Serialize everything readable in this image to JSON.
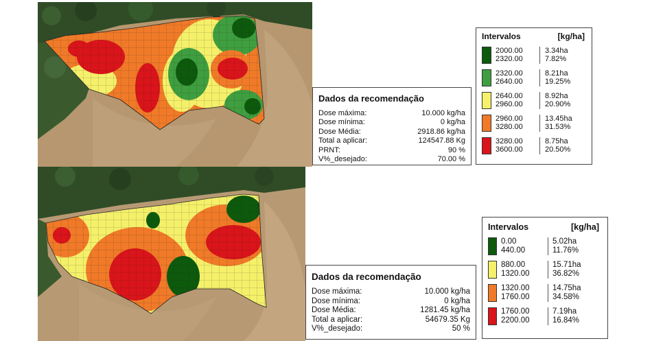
{
  "colors": {
    "dark_green": "#0d5a0d",
    "green": "#3f9e3f",
    "yellow": "#f5f06a",
    "orange": "#f07a28",
    "red": "#d9141a",
    "soil": "#b79a74",
    "forest": "#2e4a26"
  },
  "recommendation_1": {
    "title": "Dados da recomendação",
    "rows": [
      {
        "label": "Dose máxima:",
        "value": "10.000 kg/ha"
      },
      {
        "label": "Dose mínima:",
        "value": "0 kg/ha"
      },
      {
        "label": "Dose Média:",
        "value": "2918.86 kg/ha"
      },
      {
        "label": "Total a aplicar:",
        "value": "124547.88 Kg"
      },
      {
        "label": "PRNT:",
        "value": "90 %"
      },
      {
        "label": "V%_desejado:",
        "value": "70.00 %"
      }
    ]
  },
  "legend_1": {
    "title": "Intervalos",
    "unit": "[kg/ha]",
    "items": [
      {
        "color": "#0d5a0d",
        "min": "2000.00",
        "max": "2320.00",
        "area": "3.34ha",
        "pct": "7.82%"
      },
      {
        "color": "#3f9e3f",
        "min": "2320.00",
        "max": "2640.00",
        "area": "8.21ha",
        "pct": "19.25%"
      },
      {
        "color": "#f5f06a",
        "min": "2640.00",
        "max": "2960.00",
        "area": "8.92ha",
        "pct": "20.90%"
      },
      {
        "color": "#f07a28",
        "min": "2960.00",
        "max": "3280.00",
        "area": "13.45ha",
        "pct": "31.53%"
      },
      {
        "color": "#d9141a",
        "min": "3280.00",
        "max": "3600.00",
        "area": "8.75ha",
        "pct": "20.50%"
      }
    ]
  },
  "recommendation_2": {
    "title": "Dados da recomendação",
    "rows": [
      {
        "label": "Dose máxima:",
        "value": "10.000 kg/ha"
      },
      {
        "label": "Dose mínima:",
        "value": "0 kg/ha"
      },
      {
        "label": "Dose Média:",
        "value": "1281.45 kg/ha"
      },
      {
        "label": "Total a aplicar:",
        "value": "54679.35 Kg"
      },
      {
        "label": "V%_desejado:",
        "value": "50 %"
      }
    ]
  },
  "legend_2": {
    "title": "Intervalos",
    "unit": "[kg/ha]",
    "items": [
      {
        "color": "#0d5a0d",
        "min": "0.00",
        "max": "440.00",
        "area": "5.02ha",
        "pct": "11.76%"
      },
      {
        "color": "#f5f06a",
        "min": "880.00",
        "max": "1320.00",
        "area": "15.71ha",
        "pct": "36.82%"
      },
      {
        "color": "#f07a28",
        "min": "1320.00",
        "max": "1760.00",
        "area": "14.75ha",
        "pct": "34.58%"
      },
      {
        "color": "#d9141a",
        "min": "1760.00",
        "max": "2200.00",
        "area": "7.19ha",
        "pct": "16.84%"
      }
    ]
  }
}
